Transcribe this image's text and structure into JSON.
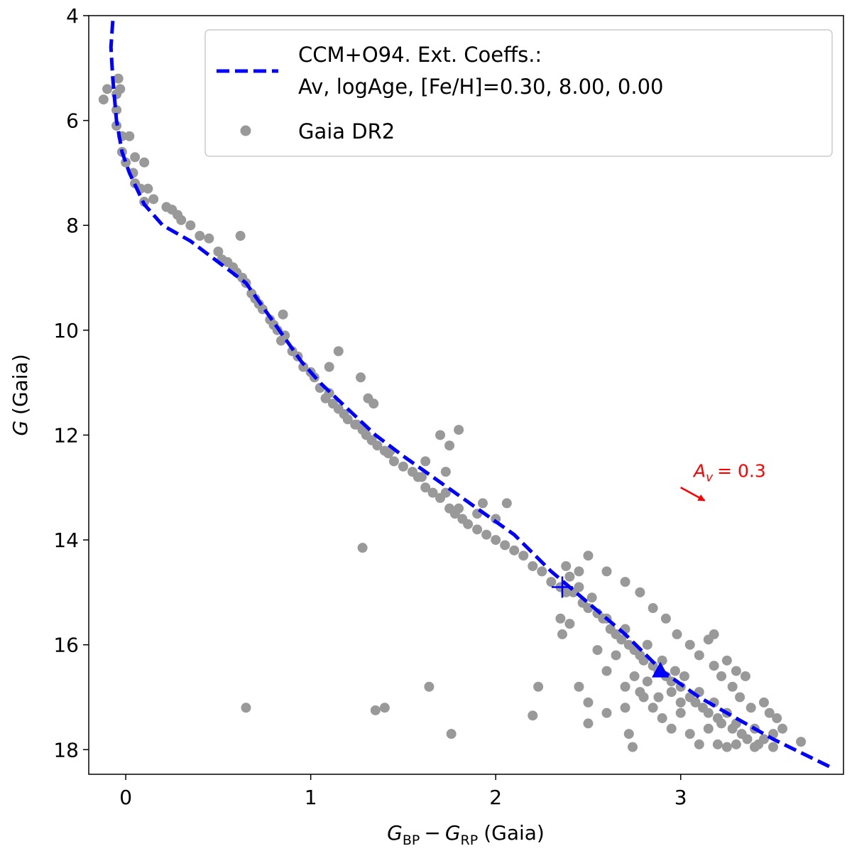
{
  "chart_data": {
    "type": "scatter",
    "xlabel": [
      "G",
      "BP",
      "−",
      "G",
      "RP",
      "(Gaia)"
    ],
    "ylabel": [
      "G",
      "(Gaia)"
    ],
    "xlim": [
      -0.2,
      3.88
    ],
    "ylim": [
      4,
      18.47
    ],
    "y_inverted": true,
    "xticks": [
      0,
      1,
      2,
      3
    ],
    "yticks": [
      4,
      6,
      8,
      10,
      12,
      14,
      16,
      18
    ],
    "legend": "upper right",
    "series": [
      {
        "name": [
          "CCM+O94. Ext. Coeffs.:",
          "Av, logAge, [Fe/H]=0.30, 8.00, 0.00"
        ],
        "type": "line",
        "color": "#0000ff",
        "dashed": true,
        "points": [
          [
            -0.07,
            4.1
          ],
          [
            -0.08,
            4.6
          ],
          [
            -0.07,
            5.2
          ],
          [
            -0.05,
            6.0
          ],
          [
            -0.02,
            6.6
          ],
          [
            0.02,
            7.0
          ],
          [
            0.1,
            7.6
          ],
          [
            0.2,
            8.0
          ],
          [
            0.35,
            8.3
          ],
          [
            0.5,
            8.7
          ],
          [
            0.65,
            9.1
          ],
          [
            0.75,
            9.6
          ],
          [
            0.85,
            10.1
          ],
          [
            0.95,
            10.6
          ],
          [
            1.05,
            11.0
          ],
          [
            1.2,
            11.5
          ],
          [
            1.35,
            12.0
          ],
          [
            1.5,
            12.4
          ],
          [
            1.7,
            12.9
          ],
          [
            1.9,
            13.4
          ],
          [
            2.1,
            13.9
          ],
          [
            2.3,
            14.6
          ],
          [
            2.5,
            15.2
          ],
          [
            2.7,
            15.8
          ],
          [
            2.9,
            16.5
          ],
          [
            3.1,
            17.0
          ],
          [
            3.3,
            17.4
          ],
          [
            3.5,
            17.8
          ],
          [
            3.82,
            18.35
          ]
        ]
      },
      {
        "name": "Gaia DR2",
        "type": "scatter",
        "color": "#999999",
        "points": [
          [
            -0.1,
            5.4
          ],
          [
            -0.12,
            5.6
          ],
          [
            -0.05,
            5.5
          ],
          [
            -0.04,
            5.2
          ],
          [
            -0.03,
            5.4
          ],
          [
            -0.05,
            5.8
          ],
          [
            -0.05,
            6.1
          ],
          [
            -0.02,
            6.3
          ],
          [
            0.02,
            6.3
          ],
          [
            -0.02,
            6.6
          ],
          [
            0.0,
            6.8
          ],
          [
            0.05,
            6.7
          ],
          [
            0.1,
            6.8
          ],
          [
            0.04,
            7.0
          ],
          [
            0.05,
            7.2
          ],
          [
            0.08,
            7.3
          ],
          [
            0.12,
            7.3
          ],
          [
            0.1,
            7.55
          ],
          [
            0.15,
            7.5
          ],
          [
            0.22,
            7.65
          ],
          [
            0.25,
            7.7
          ],
          [
            0.28,
            7.8
          ],
          [
            0.3,
            7.9
          ],
          [
            0.35,
            8.0
          ],
          [
            0.4,
            8.2
          ],
          [
            0.45,
            8.25
          ],
          [
            0.5,
            8.5
          ],
          [
            0.52,
            8.65
          ],
          [
            0.55,
            8.7
          ],
          [
            0.58,
            8.8
          ],
          [
            0.6,
            8.9
          ],
          [
            0.63,
            9.0
          ],
          [
            0.65,
            9.1
          ],
          [
            0.68,
            9.3
          ],
          [
            0.7,
            9.4
          ],
          [
            0.72,
            9.5
          ],
          [
            0.74,
            9.6
          ],
          [
            0.78,
            9.8
          ],
          [
            0.8,
            9.9
          ],
          [
            0.82,
            10.0
          ],
          [
            0.84,
            10.2
          ],
          [
            0.86,
            10.1
          ],
          [
            0.9,
            10.4
          ],
          [
            0.93,
            10.5
          ],
          [
            0.96,
            10.7
          ],
          [
            1.0,
            10.8
          ],
          [
            1.02,
            10.9
          ],
          [
            1.05,
            11.1
          ],
          [
            1.08,
            11.3
          ],
          [
            1.1,
            11.2
          ],
          [
            1.12,
            11.4
          ],
          [
            1.15,
            11.5
          ],
          [
            1.18,
            11.6
          ],
          [
            1.2,
            11.7
          ],
          [
            1.24,
            11.8
          ],
          [
            1.28,
            11.9
          ],
          [
            1.3,
            12.0
          ],
          [
            1.33,
            12.1
          ],
          [
            1.36,
            12.2
          ],
          [
            1.4,
            12.3
          ],
          [
            1.42,
            12.35
          ],
          [
            1.45,
            12.5
          ],
          [
            1.5,
            12.6
          ],
          [
            1.55,
            12.7
          ],
          [
            1.58,
            12.8
          ],
          [
            1.62,
            13.0
          ],
          [
            1.66,
            13.1
          ],
          [
            1.7,
            13.2
          ],
          [
            1.75,
            13.4
          ],
          [
            1.78,
            13.5
          ],
          [
            1.82,
            13.6
          ],
          [
            1.85,
            13.7
          ],
          [
            1.9,
            13.8
          ],
          [
            1.95,
            13.9
          ],
          [
            2.0,
            14.0
          ],
          [
            2.05,
            14.1
          ],
          [
            2.1,
            14.2
          ],
          [
            2.15,
            14.3
          ],
          [
            2.2,
            14.5
          ],
          [
            2.25,
            14.6
          ],
          [
            2.3,
            14.8
          ],
          [
            2.35,
            14.9
          ],
          [
            2.38,
            15.0
          ],
          [
            2.4,
            14.7
          ],
          [
            2.42,
            15.0
          ],
          [
            2.45,
            14.9
          ],
          [
            2.47,
            15.2
          ],
          [
            2.5,
            15.3
          ],
          [
            2.52,
            15.1
          ],
          [
            2.55,
            15.4
          ],
          [
            2.58,
            15.5
          ],
          [
            2.6,
            15.5
          ],
          [
            2.62,
            15.7
          ],
          [
            2.65,
            15.8
          ],
          [
            2.68,
            15.9
          ],
          [
            2.7,
            15.7
          ],
          [
            2.72,
            16.0
          ],
          [
            2.75,
            16.1
          ],
          [
            2.78,
            16.2
          ],
          [
            2.8,
            16.3
          ],
          [
            2.82,
            16.0
          ],
          [
            2.85,
            16.4
          ],
          [
            2.88,
            16.5
          ],
          [
            2.9,
            16.3
          ],
          [
            2.92,
            16.6
          ],
          [
            2.95,
            16.7
          ],
          [
            2.97,
            16.5
          ],
          [
            3.0,
            16.8
          ],
          [
            3.02,
            16.6
          ],
          [
            3.05,
            17.0
          ],
          [
            3.08,
            17.1
          ],
          [
            3.1,
            16.9
          ],
          [
            3.12,
            17.2
          ],
          [
            3.15,
            17.3
          ],
          [
            3.18,
            17.1
          ],
          [
            3.2,
            17.4
          ],
          [
            3.22,
            17.5
          ],
          [
            3.25,
            17.3
          ],
          [
            3.28,
            17.6
          ],
          [
            3.3,
            17.5
          ],
          [
            3.33,
            17.7
          ],
          [
            3.36,
            17.8
          ],
          [
            3.4,
            17.6
          ],
          [
            3.42,
            17.9
          ],
          [
            3.45,
            17.8
          ],
          [
            3.5,
            17.7
          ],
          [
            3.55,
            17.6
          ],
          [
            3.65,
            17.85
          ],
          [
            3.52,
            17.4
          ],
          [
            3.48,
            17.3
          ],
          [
            3.38,
            17.2
          ],
          [
            3.32,
            17.0
          ],
          [
            3.28,
            16.8
          ],
          [
            3.22,
            16.6
          ],
          [
            3.18,
            16.4
          ],
          [
            3.1,
            16.2
          ],
          [
            3.05,
            16.0
          ],
          [
            2.98,
            15.8
          ],
          [
            2.92,
            15.5
          ],
          [
            2.85,
            15.3
          ],
          [
            2.78,
            15.0
          ],
          [
            2.7,
            14.8
          ],
          [
            2.6,
            14.6
          ],
          [
            2.5,
            14.3
          ],
          [
            2.45,
            14.6
          ],
          [
            2.38,
            14.5
          ],
          [
            2.35,
            15.5
          ],
          [
            2.36,
            15.8
          ],
          [
            2.4,
            15.6
          ],
          [
            2.55,
            16.1
          ],
          [
            2.6,
            16.5
          ],
          [
            2.65,
            16.2
          ],
          [
            2.7,
            16.8
          ],
          [
            2.75,
            16.6
          ],
          [
            2.8,
            17.0
          ],
          [
            2.85,
            17.2
          ],
          [
            2.9,
            17.4
          ],
          [
            2.95,
            17.6
          ],
          [
            3.0,
            17.3
          ],
          [
            3.05,
            17.7
          ],
          [
            3.1,
            17.9
          ],
          [
            3.15,
            17.6
          ],
          [
            3.2,
            17.9
          ],
          [
            3.25,
            17.95
          ],
          [
            3.3,
            17.9
          ],
          [
            3.4,
            17.95
          ],
          [
            3.5,
            17.95
          ],
          [
            2.78,
            16.9
          ],
          [
            2.82,
            16.7
          ],
          [
            2.7,
            17.2
          ],
          [
            2.88,
            17.0
          ],
          [
            2.95,
            16.9
          ],
          [
            3.0,
            17.1
          ],
          [
            3.15,
            15.9
          ],
          [
            3.18,
            15.8
          ],
          [
            3.25,
            16.3
          ],
          [
            3.3,
            16.5
          ],
          [
            3.35,
            16.6
          ],
          [
            3.45,
            17.1
          ],
          [
            0.65,
            17.2
          ],
          [
            1.28,
            14.15
          ],
          [
            1.35,
            17.25
          ],
          [
            1.4,
            17.2
          ],
          [
            1.64,
            16.8
          ],
          [
            1.76,
            17.7
          ],
          [
            2.2,
            17.35
          ],
          [
            2.23,
            16.8
          ],
          [
            2.45,
            16.8
          ],
          [
            2.5,
            17.1
          ],
          [
            2.5,
            17.5
          ],
          [
            2.6,
            17.3
          ],
          [
            2.72,
            17.7
          ],
          [
            2.74,
            17.95
          ],
          [
            1.27,
            10.9
          ],
          [
            1.15,
            10.4
          ],
          [
            1.1,
            10.7
          ],
          [
            1.8,
            11.9
          ],
          [
            1.7,
            12.0
          ],
          [
            1.43,
            12.3
          ],
          [
            1.6,
            12.8
          ],
          [
            1.73,
            12.7
          ],
          [
            1.75,
            12.2
          ],
          [
            1.62,
            12.5
          ],
          [
            1.93,
            13.3
          ],
          [
            2.0,
            13.6
          ],
          [
            2.06,
            13.3
          ],
          [
            0.85,
            9.7
          ],
          [
            0.62,
            8.2
          ],
          [
            1.25,
            11.8
          ],
          [
            1.31,
            11.3
          ],
          [
            1.34,
            11.4
          ],
          [
            1.8,
            13.4
          ],
          [
            1.73,
            13.1
          ],
          [
            1.9,
            13.5
          ]
        ]
      }
    ],
    "markers": [
      {
        "shape": "cross",
        "color": "#0000ff",
        "x": 2.36,
        "y": 14.9
      },
      {
        "shape": "triangle",
        "color": "#0000ff",
        "x": 2.89,
        "y": 16.5
      }
    ],
    "annotation": {
      "text": [
        "A",
        "v",
        "= 0.3"
      ],
      "color": "#ff0000",
      "x": 3.07,
      "y": 12.8,
      "arrow": {
        "x1": 3.0,
        "y1": 13.0,
        "x2": 3.13,
        "y2": 13.25
      }
    }
  }
}
